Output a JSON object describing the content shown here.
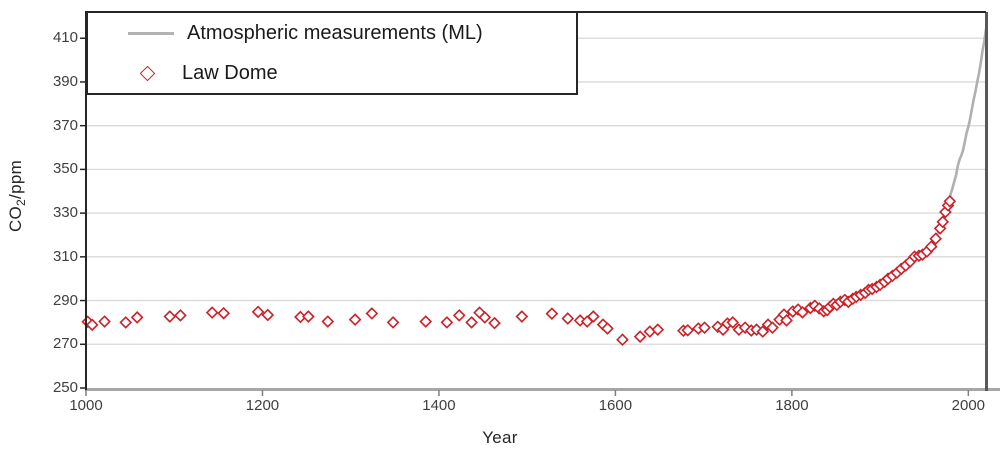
{
  "figure": {
    "background": "#ffffff"
  },
  "legend": {
    "items": [
      {
        "label": "Atmospheric measurements (ML)",
        "marker": "line",
        "color": "#b3b3b3"
      },
      {
        "label": "Law Dome",
        "marker": "open-diamond",
        "color": "#cc2027"
      }
    ]
  },
  "axes": {
    "x": {
      "label": "Year",
      "ticks": [
        1000,
        1200,
        1400,
        1600,
        1800,
        2000
      ]
    },
    "y": {
      "label_pre": "CO",
      "label_sub": "2",
      "label_post": "/ppm",
      "ticks": [
        250,
        270,
        290,
        310,
        330,
        350,
        370,
        390,
        410
      ]
    }
  },
  "colors": {
    "grid": "#d9d9d9",
    "border_top_left": "#262626",
    "border_right": "#595959",
    "axis_bottom": "#a6a6a6",
    "tick": "#7f7f7f",
    "line_series": "#b0b0b0",
    "scatter_stroke": "#cc2027",
    "scatter_fill": "#ffffff"
  },
  "chart_data": {
    "type": "combo",
    "title": "",
    "xlabel": "Year",
    "ylabel": "CO2/ppm",
    "xlim": [
      1000,
      2020
    ],
    "ylim": [
      250,
      422
    ],
    "grid": "horizontal",
    "legend_position": "top-left",
    "series": [
      {
        "name": "Atmospheric measurements (ML)",
        "type": "line",
        "color": "#b0b0b0",
        "x": [
          1958,
          1960,
          1962,
          1964,
          1966,
          1968,
          1970,
          1972,
          1974,
          1976,
          1978,
          1980,
          1982,
          1984,
          1986,
          1988,
          1990,
          1992,
          1994,
          1996,
          1998,
          2000,
          2002,
          2004,
          2006,
          2008,
          2010,
          2012,
          2014,
          2016,
          2018,
          2020,
          2021
        ],
        "y": [
          315.2,
          316.9,
          318.5,
          319.6,
          321.4,
          323.0,
          325.7,
          327.5,
          330.2,
          332.0,
          335.4,
          338.8,
          341.4,
          344.4,
          347.2,
          351.6,
          354.4,
          356.4,
          358.8,
          362.6,
          366.7,
          369.5,
          373.2,
          377.5,
          381.9,
          385.6,
          389.9,
          393.8,
          398.6,
          404.2,
          408.5,
          414.2,
          416.4
        ]
      },
      {
        "name": "Law Dome",
        "type": "scatter",
        "marker": "open-diamond",
        "color": "#cc2027",
        "x": [
          1002,
          1007,
          1021,
          1045,
          1058,
          1095,
          1107,
          1143,
          1156,
          1195,
          1206,
          1243,
          1252,
          1274,
          1305,
          1324,
          1348,
          1385,
          1409,
          1423,
          1437,
          1446,
          1452,
          1463,
          1494,
          1528,
          1546,
          1560,
          1568,
          1575,
          1586,
          1591,
          1608,
          1628,
          1639,
          1648,
          1677,
          1682,
          1694,
          1701,
          1716,
          1722,
          1727,
          1733,
          1740,
          1747,
          1754,
          1760,
          1767,
          1773,
          1778,
          1786,
          1791,
          1794,
          1801,
          1807,
          1812,
          1821,
          1826,
          1831,
          1836,
          1840,
          1843,
          1847,
          1851,
          1855,
          1860,
          1864,
          1869,
          1873,
          1878,
          1883,
          1887,
          1891,
          1896,
          1900,
          1905,
          1909,
          1914,
          1919,
          1924,
          1929,
          1934,
          1939,
          1944,
          1948,
          1953,
          1958,
          1963,
          1968,
          1971,
          1974,
          1977,
          1979
        ],
        "y": [
          280.3,
          278.9,
          280.4,
          280.0,
          282.3,
          282.7,
          283.2,
          284.5,
          284.2,
          284.8,
          283.4,
          282.5,
          282.7,
          280.4,
          281.3,
          284.1,
          280.0,
          280.4,
          280.0,
          283.2,
          280.0,
          284.5,
          282.3,
          279.7,
          282.7,
          284.0,
          281.8,
          280.9,
          280.4,
          282.7,
          279.0,
          277.2,
          272.1,
          273.5,
          275.8,
          276.7,
          276.2,
          276.4,
          277.2,
          277.6,
          278.0,
          276.7,
          279.5,
          280.0,
          276.7,
          277.6,
          276.3,
          276.7,
          275.8,
          279.0,
          277.6,
          281.3,
          283.6,
          280.9,
          285.0,
          285.9,
          284.6,
          286.6,
          287.6,
          286.4,
          285.1,
          285.6,
          287.1,
          288.5,
          288.0,
          289.4,
          290.3,
          289.4,
          290.8,
          291.7,
          292.6,
          293.5,
          294.9,
          295.3,
          296.2,
          297.2,
          298.5,
          300.0,
          301.3,
          302.7,
          304.5,
          306.0,
          307.8,
          310.1,
          310.5,
          311.0,
          312.4,
          314.7,
          318.3,
          323.0,
          326.0,
          330.5,
          333.5,
          335.4
        ]
      }
    ]
  }
}
